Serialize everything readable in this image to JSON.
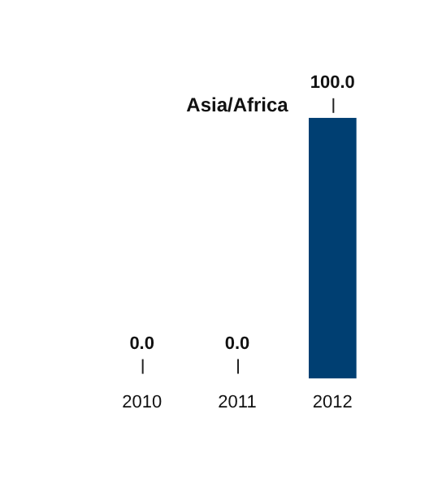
{
  "chart_data": {
    "type": "bar",
    "title": "Asia/Africa",
    "categories": [
      "2010",
      "2011",
      "2012"
    ],
    "values": [
      0,
      0,
      100
    ],
    "color": "#003f72",
    "value_labels": [
      "0.0",
      "0.0",
      "100.0"
    ],
    "grid": false,
    "legend": false
  }
}
